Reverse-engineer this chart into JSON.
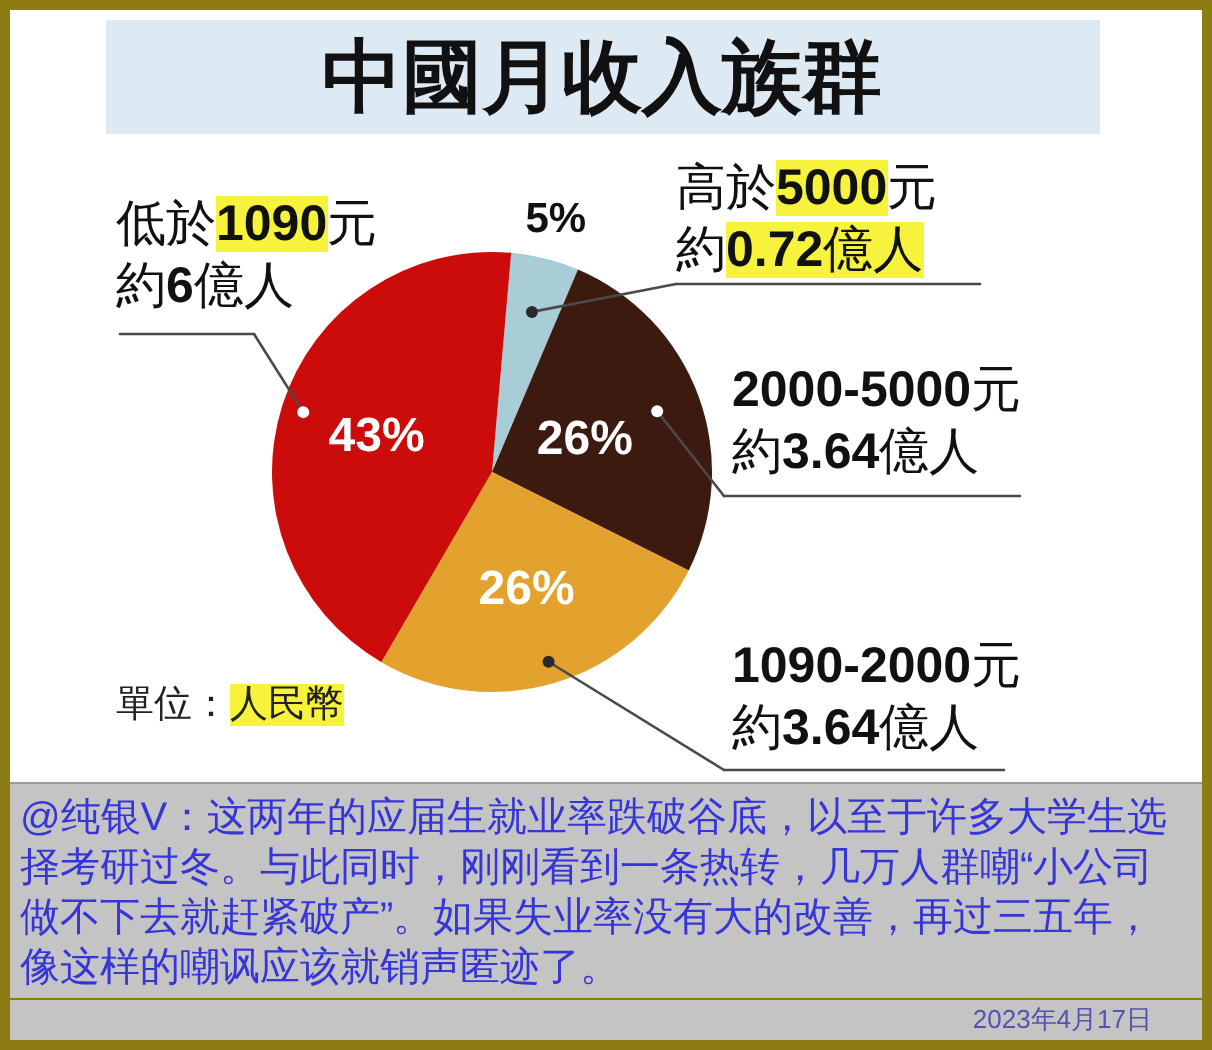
{
  "chart_data": {
    "type": "pie",
    "title": "中國月收入族群",
    "categories": [
      "高於5000元約0.72億人",
      "2000-5000元約3.64億人",
      "1090-2000元約3.64億人",
      "低於1090元約6億人"
    ],
    "values": [
      5,
      26,
      26,
      43
    ],
    "colors": [
      "#a9cdd7",
      "#3c1a0f",
      "#e2a22d",
      "#cc0b0b"
    ],
    "value_labels": [
      "5%",
      "26%",
      "26%",
      "43%"
    ],
    "annotations": [
      "單位：人民幣",
      "@纯银V：这两年的应届生就业率跌破谷底，以至于许多大学生选择考研过冬。与此同时，刚刚看到一条热转，几万人群嘲“小公司做不下去就赶紧破产”。如果失业率没有大的改善，再过三五年，像这样的嘲讽应该就销声匿迹了。",
      "2023年4月17日"
    ]
  }
}
